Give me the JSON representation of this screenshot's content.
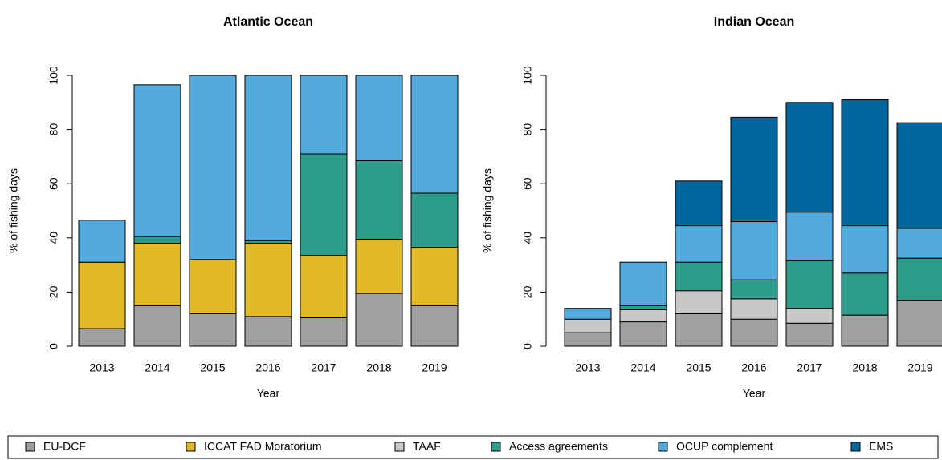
{
  "chart_data": [
    {
      "type": "stacked_bar",
      "title": "Atlantic Ocean",
      "x_label": "Year",
      "y_label": "% of fishing days",
      "categories": [
        "2013",
        "2014",
        "2015",
        "2016",
        "2017",
        "2018",
        "2019"
      ],
      "ylim": [
        0,
        100
      ],
      "yticks": [
        0,
        20,
        40,
        60,
        80,
        100
      ],
      "series": [
        {
          "name": "EU-DCF",
          "color": "#a0a0a0",
          "values": [
            6.5,
            15,
            12,
            11,
            10.5,
            19.5,
            15
          ]
        },
        {
          "name": "ICCAT FAD Moratorium",
          "color": "#e2b928",
          "values": [
            24.5,
            23,
            20,
            27,
            23,
            20,
            21.5
          ]
        },
        {
          "name": "Access agreements",
          "color": "#2e9c8a",
          "values": [
            0,
            2.5,
            0,
            1,
            37.5,
            29,
            20
          ]
        },
        {
          "name": "OCUP complement",
          "color": "#52aade",
          "values": [
            15.5,
            56,
            68,
            61,
            29,
            31.5,
            43.5
          ]
        }
      ]
    },
    {
      "type": "stacked_bar",
      "title": "Indian Ocean",
      "x_label": "Year",
      "y_label": "% of fishing days",
      "categories": [
        "2013",
        "2014",
        "2015",
        "2016",
        "2017",
        "2018",
        "2019"
      ],
      "ylim": [
        0,
        100
      ],
      "yticks": [
        0,
        20,
        40,
        60,
        80,
        100
      ],
      "series": [
        {
          "name": "EU-DCF",
          "color": "#a0a0a0",
          "values": [
            5,
            9,
            12,
            10,
            8.5,
            11.5,
            17
          ]
        },
        {
          "name": "TAAF",
          "color": "#c8c8c8",
          "values": [
            5,
            4.5,
            8.5,
            7.5,
            5.5,
            0,
            0
          ]
        },
        {
          "name": "Access agreements",
          "color": "#2e9c8a",
          "values": [
            0,
            1.5,
            10.5,
            7,
            17.5,
            15.5,
            15.5
          ]
        },
        {
          "name": "OCUP complement",
          "color": "#52aade",
          "values": [
            4,
            16,
            13.5,
            21.5,
            18,
            17.5,
            11
          ]
        },
        {
          "name": "EMS",
          "color": "#0066a0",
          "values": [
            0,
            0,
            16.5,
            38.5,
            40.5,
            46.5,
            39
          ]
        }
      ]
    }
  ]
}
